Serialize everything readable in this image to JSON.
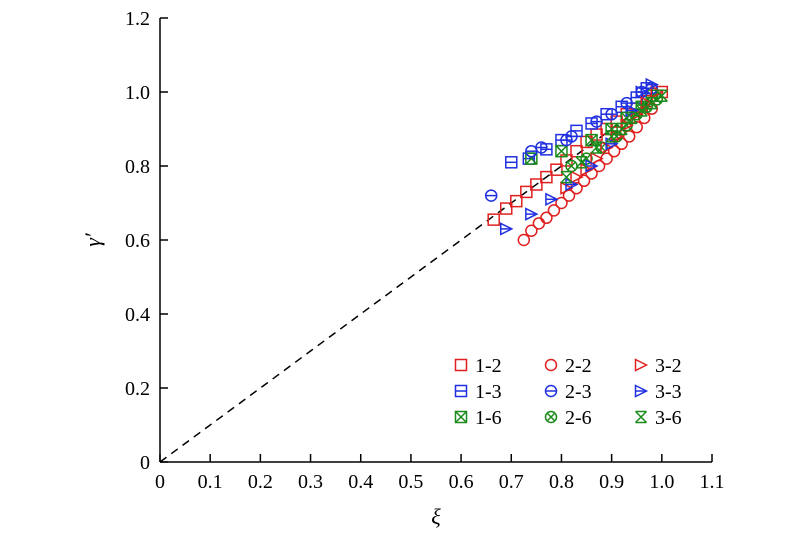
{
  "chart_data": {
    "type": "scatter",
    "xlabel": "ξ",
    "ylabel": "γ′",
    "xlim": [
      0,
      1.1
    ],
    "ylim": [
      0,
      1.2
    ],
    "x_ticks": [
      "0",
      "0.1",
      "0.2",
      "0.3",
      "0.4",
      "0.5",
      "0.6",
      "0.7",
      "0.8",
      "0.9",
      "1.0",
      "1.1"
    ],
    "y_ticks": [
      "0",
      "0.2",
      "0.4",
      "0.6",
      "0.8",
      "1.0",
      "1.2"
    ],
    "grid": false,
    "legend_position": "bottom-right",
    "reference_line": {
      "style": "dashed",
      "x": [
        0,
        1.0
      ],
      "y": [
        0,
        1.0
      ]
    },
    "series": [
      {
        "name": "1-2",
        "marker": "square",
        "color": "#e02020",
        "x": [
          0.665,
          0.69,
          0.71,
          0.73,
          0.75,
          0.77,
          0.79,
          0.81,
          0.83,
          0.85,
          0.87,
          0.89,
          0.91,
          0.93,
          0.95,
          0.97,
          0.99,
          1.0
        ],
        "y": [
          0.655,
          0.685,
          0.705,
          0.73,
          0.75,
          0.77,
          0.79,
          0.815,
          0.84,
          0.865,
          0.885,
          0.9,
          0.92,
          0.94,
          0.955,
          0.975,
          0.99,
          1.0
        ]
      },
      {
        "name": "1-3",
        "marker": "square-line",
        "color": "#2030e0",
        "x": [
          0.7,
          0.735,
          0.77,
          0.8,
          0.83,
          0.86,
          0.89,
          0.92,
          0.95,
          0.97
        ],
        "y": [
          0.81,
          0.82,
          0.845,
          0.87,
          0.895,
          0.915,
          0.94,
          0.96,
          0.985,
          1.01
        ]
      },
      {
        "name": "1-6",
        "marker": "square-x",
        "color": "#1a8a1a",
        "x": [
          0.74,
          0.8,
          0.86,
          0.9,
          0.93,
          0.96,
          0.98
        ],
        "y": [
          0.82,
          0.84,
          0.87,
          0.9,
          0.93,
          0.96,
          0.99
        ]
      },
      {
        "name": "2-2",
        "marker": "circle",
        "color": "#e02020",
        "x": [
          0.725,
          0.74,
          0.755,
          0.77,
          0.785,
          0.8,
          0.815,
          0.83,
          0.845,
          0.86,
          0.875,
          0.89,
          0.905,
          0.92,
          0.935,
          0.95,
          0.965,
          0.98
        ],
        "y": [
          0.6,
          0.625,
          0.645,
          0.66,
          0.68,
          0.7,
          0.72,
          0.74,
          0.76,
          0.78,
          0.8,
          0.82,
          0.84,
          0.86,
          0.88,
          0.905,
          0.93,
          0.955
        ]
      },
      {
        "name": "2-3",
        "marker": "circle-line",
        "color": "#2030e0",
        "x": [
          0.66,
          0.74,
          0.76,
          0.81,
          0.82,
          0.87,
          0.9,
          0.93,
          0.96,
          0.98
        ],
        "y": [
          0.72,
          0.84,
          0.85,
          0.87,
          0.88,
          0.92,
          0.94,
          0.97,
          1.0,
          1.01
        ]
      },
      {
        "name": "2-6",
        "marker": "circle-x",
        "color": "#1a8a1a",
        "x": [
          0.82,
          0.85,
          0.88,
          0.91,
          0.93,
          0.95,
          0.97,
          0.99
        ],
        "y": [
          0.8,
          0.82,
          0.85,
          0.88,
          0.91,
          0.94,
          0.96,
          0.98
        ]
      },
      {
        "name": "3-2",
        "marker": "triangle-right",
        "color": "#e02020",
        "x": [
          0.81,
          0.83,
          0.85,
          0.87,
          0.89,
          0.91,
          0.93,
          0.95,
          0.97,
          0.99
        ],
        "y": [
          0.74,
          0.77,
          0.79,
          0.82,
          0.85,
          0.88,
          0.91,
          0.94,
          0.97,
          1.0
        ]
      },
      {
        "name": "3-3",
        "marker": "triangle-right-filled",
        "color": "#2030e0",
        "x": [
          0.69,
          0.74,
          0.78,
          0.82,
          0.86,
          0.9,
          0.94,
          0.96,
          0.98
        ],
        "y": [
          0.63,
          0.67,
          0.71,
          0.75,
          0.8,
          0.86,
          0.95,
          1.0,
          1.02
        ]
      },
      {
        "name": "3-6",
        "marker": "cross-x",
        "color": "#1a8a1a",
        "x": [
          0.81,
          0.84,
          0.87,
          0.9,
          0.92,
          0.94,
          0.96,
          0.98,
          1.0
        ],
        "y": [
          0.77,
          0.81,
          0.85,
          0.88,
          0.9,
          0.93,
          0.95,
          0.97,
          0.99
        ]
      }
    ]
  }
}
